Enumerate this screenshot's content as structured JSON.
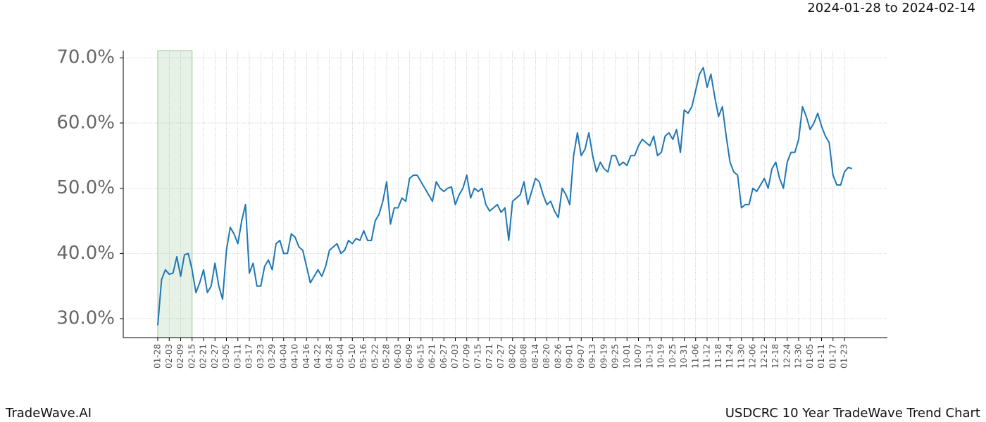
{
  "chart_data": {
    "type": "line",
    "title": "USDCRC 10 Year TradeWave Trend Chart",
    "subtitle": "2024-01-28 to 2024-02-14",
    "brand": "TradeWave.AI",
    "categories": [
      "01-28",
      null,
      null,
      "02-03",
      null,
      null,
      "02-09",
      null,
      null,
      "02-15",
      null,
      null,
      "02-21",
      null,
      null,
      "02-27",
      null,
      null,
      "03-05",
      null,
      null,
      "03-11",
      null,
      null,
      "03-17",
      null,
      null,
      "03-23",
      null,
      null,
      "03-29",
      null,
      null,
      "04-04",
      null,
      null,
      "04-10",
      null,
      null,
      "04-16",
      null,
      null,
      "04-22",
      null,
      null,
      "04-28",
      null,
      null,
      "05-04",
      null,
      null,
      "05-10",
      null,
      null,
      "05-16",
      null,
      null,
      "05-22",
      null,
      null,
      "05-28",
      null,
      null,
      "06-03",
      null,
      null,
      "06-09",
      null,
      null,
      "06-15",
      null,
      null,
      "06-21",
      null,
      null,
      "06-27",
      null,
      null,
      "07-03",
      null,
      null,
      "07-09",
      null,
      null,
      "07-15",
      null,
      null,
      "07-21",
      null,
      null,
      "07-27",
      null,
      null,
      "08-02",
      null,
      null,
      "08-08",
      null,
      null,
      "08-14",
      null,
      null,
      "08-20",
      null,
      null,
      "08-26",
      null,
      null,
      "09-01",
      null,
      null,
      "09-07",
      null,
      null,
      "09-13",
      null,
      null,
      "09-19",
      null,
      null,
      "09-25",
      null,
      null,
      "10-01",
      null,
      null,
      "10-07",
      null,
      null,
      "10-13",
      null,
      null,
      "10-19",
      null,
      null,
      "10-25",
      null,
      null,
      "10-31",
      null,
      null,
      "11-06",
      null,
      null,
      "11-12",
      null,
      null,
      "11-18",
      null,
      null,
      "11-24",
      null,
      null,
      "11-30",
      null,
      null,
      "12-06",
      null,
      null,
      "12-12",
      null,
      null,
      "12-18",
      null,
      null,
      "12-24",
      null,
      null,
      "12-30",
      null,
      null,
      "01-05",
      null,
      null,
      "01-11",
      null,
      null,
      "01-17",
      null,
      null,
      "01-23",
      null,
      null
    ],
    "series": [
      {
        "color": "#1f77b4",
        "values": [
          29,
          36,
          37.5,
          36.8,
          37,
          39.5,
          36.5,
          39.8,
          40,
          37.5,
          34,
          35.5,
          37.5,
          34,
          35,
          38.5,
          35,
          33,
          40.5,
          44,
          43,
          41.5,
          45,
          47.5,
          37,
          38.5,
          35,
          35,
          38,
          39,
          37.5,
          41.5,
          42,
          40,
          40,
          43,
          42.5,
          41,
          40.5,
          38,
          35.5,
          36.5,
          37.5,
          36.5,
          38,
          40.5,
          41,
          41.5,
          40,
          40.5,
          42,
          41.5,
          42.3,
          42,
          43.5,
          42,
          42,
          45,
          46,
          48,
          51,
          44.5,
          47,
          47,
          48.5,
          48,
          51.5,
          52,
          52,
          51,
          50,
          49,
          48,
          51,
          50,
          49.5,
          50,
          50.2,
          47.5,
          49,
          50,
          52,
          48.5,
          50,
          49.5,
          50,
          47.5,
          46.5,
          47,
          47.5,
          46.3,
          47,
          42,
          48,
          48.5,
          49,
          51,
          47.5,
          49.5,
          51.5,
          51,
          49,
          47.5,
          48,
          46.5,
          45.5,
          50,
          49,
          47.5,
          55,
          58.5,
          55,
          56,
          58.5,
          55,
          52.5,
          54,
          53,
          52.5,
          55,
          55,
          53.5,
          54,
          53.5,
          55,
          55,
          56.5,
          57.5,
          57,
          56.5,
          58,
          55,
          55.5,
          58,
          58.5,
          57.5,
          59,
          55.5,
          62,
          61.5,
          62.5,
          65,
          67.5,
          68.5,
          65.5,
          67.5,
          64,
          61,
          62.5,
          58,
          54,
          52.5,
          52,
          47,
          47.5,
          47.5,
          50,
          49.5,
          50.5,
          51.5,
          50,
          53,
          54,
          51.5,
          50,
          54,
          55.5,
          55.5,
          57.5,
          62.5,
          61,
          59,
          60,
          61.5,
          59.5,
          58,
          57,
          52,
          50.5,
          50.5,
          52.5,
          53.2,
          53
        ]
      }
    ],
    "ylim": [
      27.1,
      71.1
    ],
    "yticks": [
      {
        "value": 30,
        "label": "30.0%"
      },
      {
        "value": 40,
        "label": "40.0%"
      },
      {
        "value": 50,
        "label": "50.0%"
      },
      {
        "value": 60,
        "label": "60.0%"
      },
      {
        "value": 70,
        "label": "70.0%"
      }
    ],
    "grid": true,
    "highlight": [
      0,
      9
    ],
    "highlight_color": "#e6f2e6"
  }
}
